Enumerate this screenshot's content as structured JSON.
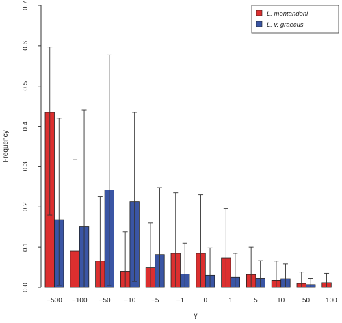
{
  "chart_data": {
    "type": "bar",
    "title": "",
    "xlabel": "γ",
    "ylabel": "Frequency",
    "ylim": [
      0,
      0.7
    ],
    "yticks": [
      "0.0",
      "0.1",
      "0.2",
      "0.3",
      "0.4",
      "0.5",
      "0.6",
      "0.7"
    ],
    "categories": [
      "−500",
      "−100",
      "−50",
      "−10",
      "−5",
      "−1",
      "0",
      "1",
      "5",
      "10",
      "50",
      "100"
    ],
    "series": [
      {
        "name": "L. montandoni",
        "color": "#dc2f2f",
        "values": [
          0.435,
          0.09,
          0.065,
          0.04,
          0.05,
          0.085,
          0.085,
          0.073,
          0.032,
          0.018,
          0.01,
          0.012
        ],
        "error_upper": [
          0.597,
          0.318,
          0.225,
          0.138,
          0.16,
          0.235,
          0.23,
          0.196,
          0.1,
          0.065,
          0.038,
          0.035
        ],
        "error_lower": [
          0.18,
          0.0,
          0.0,
          0.0,
          0.0,
          0.0,
          0.0,
          0.0,
          0.0,
          0.0,
          0.0,
          0.0
        ]
      },
      {
        "name": "L. v. graecus",
        "color": "#3a55a4",
        "values": [
          0.168,
          0.152,
          0.242,
          0.213,
          0.082,
          0.033,
          0.03,
          0.025,
          0.023,
          0.022,
          0.007,
          0.0
        ],
        "error_upper": [
          0.42,
          0.44,
          0.577,
          0.435,
          0.248,
          0.11,
          0.098,
          0.085,
          0.066,
          0.058,
          0.023,
          0.0
        ],
        "error_lower": [
          0.005,
          0.0,
          0.005,
          0.015,
          0.0,
          0.0,
          0.0,
          0.0,
          0.0,
          0.0,
          0.0,
          0.0
        ]
      }
    ],
    "legend_position": "top-right",
    "grid": false
  }
}
